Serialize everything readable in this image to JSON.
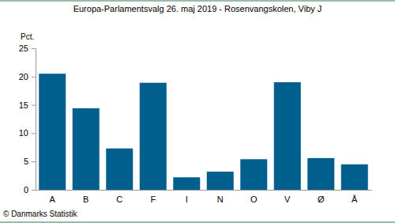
{
  "chart_data": {
    "type": "bar",
    "title": "Europa-Parlamentsvalg 26. maj 2019 - Rosenvangskolen, Viby J",
    "ylabel": "Pct.",
    "source": "© Danmarks Statistik",
    "categories": [
      "A",
      "B",
      "C",
      "F",
      "I",
      "N",
      "O",
      "V",
      "Ø",
      "Å"
    ],
    "values": [
      20.5,
      14.4,
      7.3,
      18.9,
      2.2,
      3.2,
      5.4,
      19.0,
      5.6,
      4.5
    ],
    "color": "#005f8c",
    "ylim": [
      0,
      25
    ],
    "yticks": [
      0,
      5,
      10,
      15,
      20,
      25
    ],
    "grid": false
  }
}
